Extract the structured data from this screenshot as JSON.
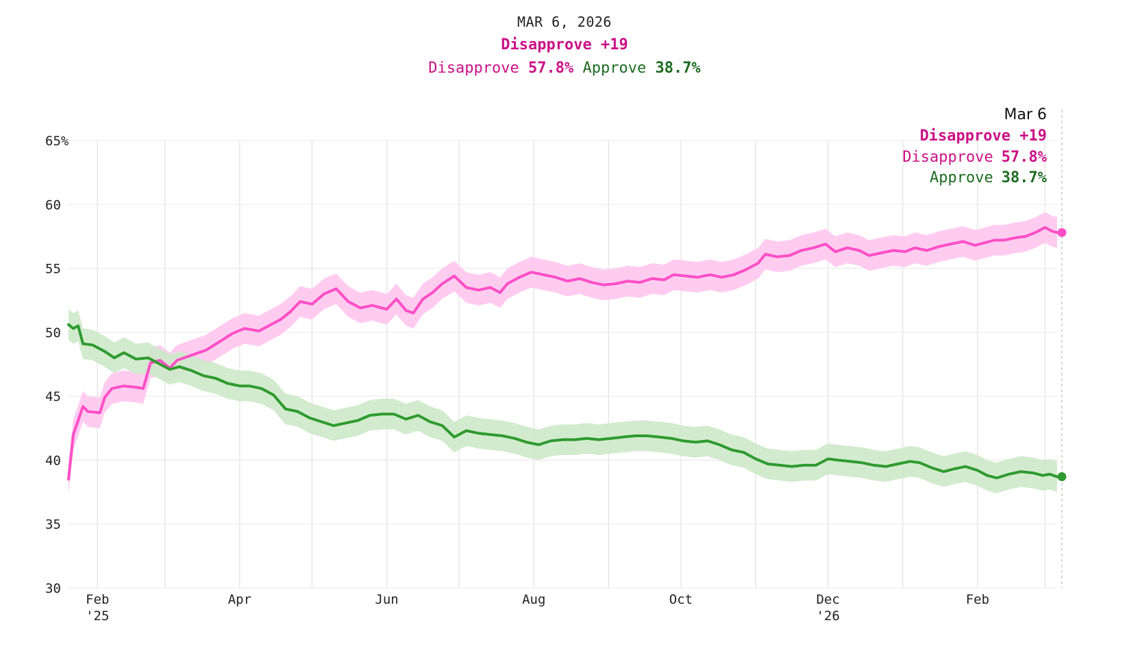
{
  "header": {
    "date": "MAR 6, 2026",
    "net_label": "Disapprove +19",
    "disapprove_label": "Disapprove",
    "disapprove_value": "57.8%",
    "approve_label": "Approve",
    "approve_value": "38.7%"
  },
  "tooltip": {
    "date": "Mar 6",
    "net_label": "Disapprove +19",
    "disapprove_label": "Disapprove",
    "disapprove_value": "57.8%",
    "approve_label": "Approve",
    "approve_value": "38.7%"
  },
  "colors": {
    "disapprove": "#ff4fc6",
    "disapprove_band": "#ffc7ee",
    "disapprove_text": "#cc1187",
    "approve": "#2f9a2f",
    "approve_band": "#cde9c9",
    "approve_text": "#1e6b22"
  },
  "chart_data": {
    "type": "line",
    "x_start": "2025-01-20",
    "x_end": "2026-03-06",
    "ylim": [
      30,
      65
    ],
    "y_ticks": [
      {
        "value": 65,
        "label": "65%"
      },
      {
        "value": 60,
        "label": "60"
      },
      {
        "value": 55,
        "label": "55"
      },
      {
        "value": 50,
        "label": "50"
      },
      {
        "value": 45,
        "label": "45"
      },
      {
        "value": 40,
        "label": "40"
      },
      {
        "value": 35,
        "label": "35"
      },
      {
        "value": 30,
        "label": "30"
      }
    ],
    "x_ticks": [
      {
        "date": "2025-02-01",
        "label": "Feb",
        "sub": "'25"
      },
      {
        "date": "2025-04-01",
        "label": "Apr",
        "sub": ""
      },
      {
        "date": "2025-06-01",
        "label": "Jun",
        "sub": ""
      },
      {
        "date": "2025-08-01",
        "label": "Aug",
        "sub": ""
      },
      {
        "date": "2025-10-01",
        "label": "Oct",
        "sub": ""
      },
      {
        "date": "2025-12-01",
        "label": "Dec",
        "sub": "'26"
      },
      {
        "date": "2026-02-01",
        "label": "Feb",
        "sub": ""
      }
    ],
    "grid_dates": [
      "2025-02-01",
      "2025-03-01",
      "2025-04-01",
      "2025-05-01",
      "2025-06-01",
      "2025-07-01",
      "2025-08-01",
      "2025-09-01",
      "2025-10-01",
      "2025-11-01",
      "2025-12-01",
      "2026-01-01",
      "2026-02-01",
      "2026-03-01"
    ],
    "grid": true,
    "series": [
      {
        "name": "Disapprove",
        "band_halfwidth": 1.2,
        "points": [
          [
            "2025-01-20",
            38.5
          ],
          [
            "2025-01-22",
            42.0
          ],
          [
            "2025-01-24",
            43.1
          ],
          [
            "2025-01-26",
            44.2
          ],
          [
            "2025-01-28",
            43.8
          ],
          [
            "2025-02-02",
            43.7
          ],
          [
            "2025-02-04",
            44.9
          ],
          [
            "2025-02-07",
            45.6
          ],
          [
            "2025-02-12",
            45.8
          ],
          [
            "2025-02-17",
            45.7
          ],
          [
            "2025-02-20",
            45.6
          ],
          [
            "2025-02-23",
            47.6
          ],
          [
            "2025-02-27",
            47.8
          ],
          [
            "2025-03-03",
            47.2
          ],
          [
            "2025-03-06",
            47.8
          ],
          [
            "2025-03-12",
            48.2
          ],
          [
            "2025-03-18",
            48.6
          ],
          [
            "2025-03-24",
            49.3
          ],
          [
            "2025-03-29",
            49.9
          ],
          [
            "2025-04-03",
            50.3
          ],
          [
            "2025-04-09",
            50.1
          ],
          [
            "2025-04-13",
            50.5
          ],
          [
            "2025-04-18",
            51.0
          ],
          [
            "2025-04-22",
            51.6
          ],
          [
            "2025-04-26",
            52.4
          ],
          [
            "2025-05-01",
            52.2
          ],
          [
            "2025-05-06",
            53.0
          ],
          [
            "2025-05-11",
            53.4
          ],
          [
            "2025-05-16",
            52.4
          ],
          [
            "2025-05-21",
            51.9
          ],
          [
            "2025-05-26",
            52.1
          ],
          [
            "2025-06-01",
            51.8
          ],
          [
            "2025-06-05",
            52.6
          ],
          [
            "2025-06-09",
            51.7
          ],
          [
            "2025-06-12",
            51.5
          ],
          [
            "2025-06-16",
            52.6
          ],
          [
            "2025-06-20",
            53.1
          ],
          [
            "2025-06-24",
            53.8
          ],
          [
            "2025-06-29",
            54.4
          ],
          [
            "2025-07-04",
            53.5
          ],
          [
            "2025-07-09",
            53.3
          ],
          [
            "2025-07-14",
            53.5
          ],
          [
            "2025-07-18",
            53.1
          ],
          [
            "2025-07-21",
            53.8
          ],
          [
            "2025-07-26",
            54.3
          ],
          [
            "2025-07-31",
            54.7
          ],
          [
            "2025-08-05",
            54.5
          ],
          [
            "2025-08-10",
            54.3
          ],
          [
            "2025-08-15",
            54.0
          ],
          [
            "2025-08-20",
            54.2
          ],
          [
            "2025-08-25",
            53.9
          ],
          [
            "2025-08-30",
            53.7
          ],
          [
            "2025-09-04",
            53.8
          ],
          [
            "2025-09-09",
            54.0
          ],
          [
            "2025-09-14",
            53.9
          ],
          [
            "2025-09-19",
            54.2
          ],
          [
            "2025-09-24",
            54.1
          ],
          [
            "2025-09-28",
            54.5
          ],
          [
            "2025-10-03",
            54.4
          ],
          [
            "2025-10-08",
            54.3
          ],
          [
            "2025-10-13",
            54.5
          ],
          [
            "2025-10-18",
            54.3
          ],
          [
            "2025-10-23",
            54.5
          ],
          [
            "2025-10-28",
            54.9
          ],
          [
            "2025-11-02",
            55.4
          ],
          [
            "2025-11-05",
            56.1
          ],
          [
            "2025-11-10",
            55.9
          ],
          [
            "2025-11-15",
            56.0
          ],
          [
            "2025-11-20",
            56.4
          ],
          [
            "2025-11-25",
            56.6
          ],
          [
            "2025-11-30",
            56.9
          ],
          [
            "2025-12-04",
            56.3
          ],
          [
            "2025-12-09",
            56.6
          ],
          [
            "2025-12-14",
            56.4
          ],
          [
            "2025-12-18",
            56.0
          ],
          [
            "2025-12-23",
            56.2
          ],
          [
            "2025-12-28",
            56.4
          ],
          [
            "2026-01-02",
            56.3
          ],
          [
            "2026-01-06",
            56.6
          ],
          [
            "2026-01-11",
            56.4
          ],
          [
            "2026-01-16",
            56.7
          ],
          [
            "2026-01-21",
            56.9
          ],
          [
            "2026-01-26",
            57.1
          ],
          [
            "2026-01-31",
            56.8
          ],
          [
            "2026-02-04",
            57.0
          ],
          [
            "2026-02-08",
            57.2
          ],
          [
            "2026-02-12",
            57.2
          ],
          [
            "2026-02-17",
            57.4
          ],
          [
            "2026-02-21",
            57.5
          ],
          [
            "2026-02-25",
            57.8
          ],
          [
            "2026-03-01",
            58.2
          ],
          [
            "2026-03-04",
            57.9
          ],
          [
            "2026-03-06",
            57.8
          ]
        ]
      },
      {
        "name": "Approve",
        "band_halfwidth": 1.2,
        "points": [
          [
            "2025-01-20",
            50.6
          ],
          [
            "2025-01-22",
            50.3
          ],
          [
            "2025-01-24",
            50.5
          ],
          [
            "2025-01-26",
            49.1
          ],
          [
            "2025-01-30",
            49.0
          ],
          [
            "2025-02-04",
            48.5
          ],
          [
            "2025-02-08",
            48.0
          ],
          [
            "2025-02-12",
            48.4
          ],
          [
            "2025-02-17",
            47.9
          ],
          [
            "2025-02-22",
            48.0
          ],
          [
            "2025-02-27",
            47.5
          ],
          [
            "2025-03-03",
            47.1
          ],
          [
            "2025-03-07",
            47.3
          ],
          [
            "2025-03-12",
            47.0
          ],
          [
            "2025-03-17",
            46.6
          ],
          [
            "2025-03-22",
            46.4
          ],
          [
            "2025-03-27",
            46.0
          ],
          [
            "2025-04-01",
            45.8
          ],
          [
            "2025-04-05",
            45.8
          ],
          [
            "2025-04-10",
            45.6
          ],
          [
            "2025-04-15",
            45.1
          ],
          [
            "2025-04-20",
            44.0
          ],
          [
            "2025-04-25",
            43.8
          ],
          [
            "2025-04-30",
            43.3
          ],
          [
            "2025-05-05",
            43.0
          ],
          [
            "2025-05-10",
            42.7
          ],
          [
            "2025-05-15",
            42.9
          ],
          [
            "2025-05-20",
            43.1
          ],
          [
            "2025-05-25",
            43.5
          ],
          [
            "2025-05-30",
            43.6
          ],
          [
            "2025-06-04",
            43.6
          ],
          [
            "2025-06-09",
            43.2
          ],
          [
            "2025-06-14",
            43.5
          ],
          [
            "2025-06-19",
            43.0
          ],
          [
            "2025-06-24",
            42.7
          ],
          [
            "2025-06-29",
            41.8
          ],
          [
            "2025-07-04",
            42.3
          ],
          [
            "2025-07-09",
            42.1
          ],
          [
            "2025-07-14",
            42.0
          ],
          [
            "2025-07-19",
            41.9
          ],
          [
            "2025-07-24",
            41.7
          ],
          [
            "2025-07-29",
            41.4
          ],
          [
            "2025-08-03",
            41.2
          ],
          [
            "2025-08-08",
            41.5
          ],
          [
            "2025-08-13",
            41.6
          ],
          [
            "2025-08-18",
            41.6
          ],
          [
            "2025-08-23",
            41.7
          ],
          [
            "2025-08-28",
            41.6
          ],
          [
            "2025-09-02",
            41.7
          ],
          [
            "2025-09-07",
            41.8
          ],
          [
            "2025-09-12",
            41.9
          ],
          [
            "2025-09-17",
            41.9
          ],
          [
            "2025-09-22",
            41.8
          ],
          [
            "2025-09-27",
            41.7
          ],
          [
            "2025-10-02",
            41.5
          ],
          [
            "2025-10-07",
            41.4
          ],
          [
            "2025-10-12",
            41.5
          ],
          [
            "2025-10-17",
            41.2
          ],
          [
            "2025-10-22",
            40.8
          ],
          [
            "2025-10-27",
            40.6
          ],
          [
            "2025-11-01",
            40.1
          ],
          [
            "2025-11-06",
            39.7
          ],
          [
            "2025-11-11",
            39.6
          ],
          [
            "2025-11-16",
            39.5
          ],
          [
            "2025-11-21",
            39.6
          ],
          [
            "2025-11-26",
            39.6
          ],
          [
            "2025-12-01",
            40.1
          ],
          [
            "2025-12-05",
            40.0
          ],
          [
            "2025-12-10",
            39.9
          ],
          [
            "2025-12-15",
            39.8
          ],
          [
            "2025-12-20",
            39.6
          ],
          [
            "2025-12-25",
            39.5
          ],
          [
            "2025-12-30",
            39.7
          ],
          [
            "2026-01-04",
            39.9
          ],
          [
            "2026-01-08",
            39.8
          ],
          [
            "2026-01-13",
            39.4
          ],
          [
            "2026-01-18",
            39.1
          ],
          [
            "2026-01-22",
            39.3
          ],
          [
            "2026-01-27",
            39.5
          ],
          [
            "2026-02-01",
            39.2
          ],
          [
            "2026-02-05",
            38.8
          ],
          [
            "2026-02-09",
            38.6
          ],
          [
            "2026-02-14",
            38.9
          ],
          [
            "2026-02-19",
            39.1
          ],
          [
            "2026-02-24",
            39.0
          ],
          [
            "2026-02-28",
            38.8
          ],
          [
            "2026-03-03",
            38.9
          ],
          [
            "2026-03-06",
            38.7
          ]
        ]
      }
    ]
  }
}
